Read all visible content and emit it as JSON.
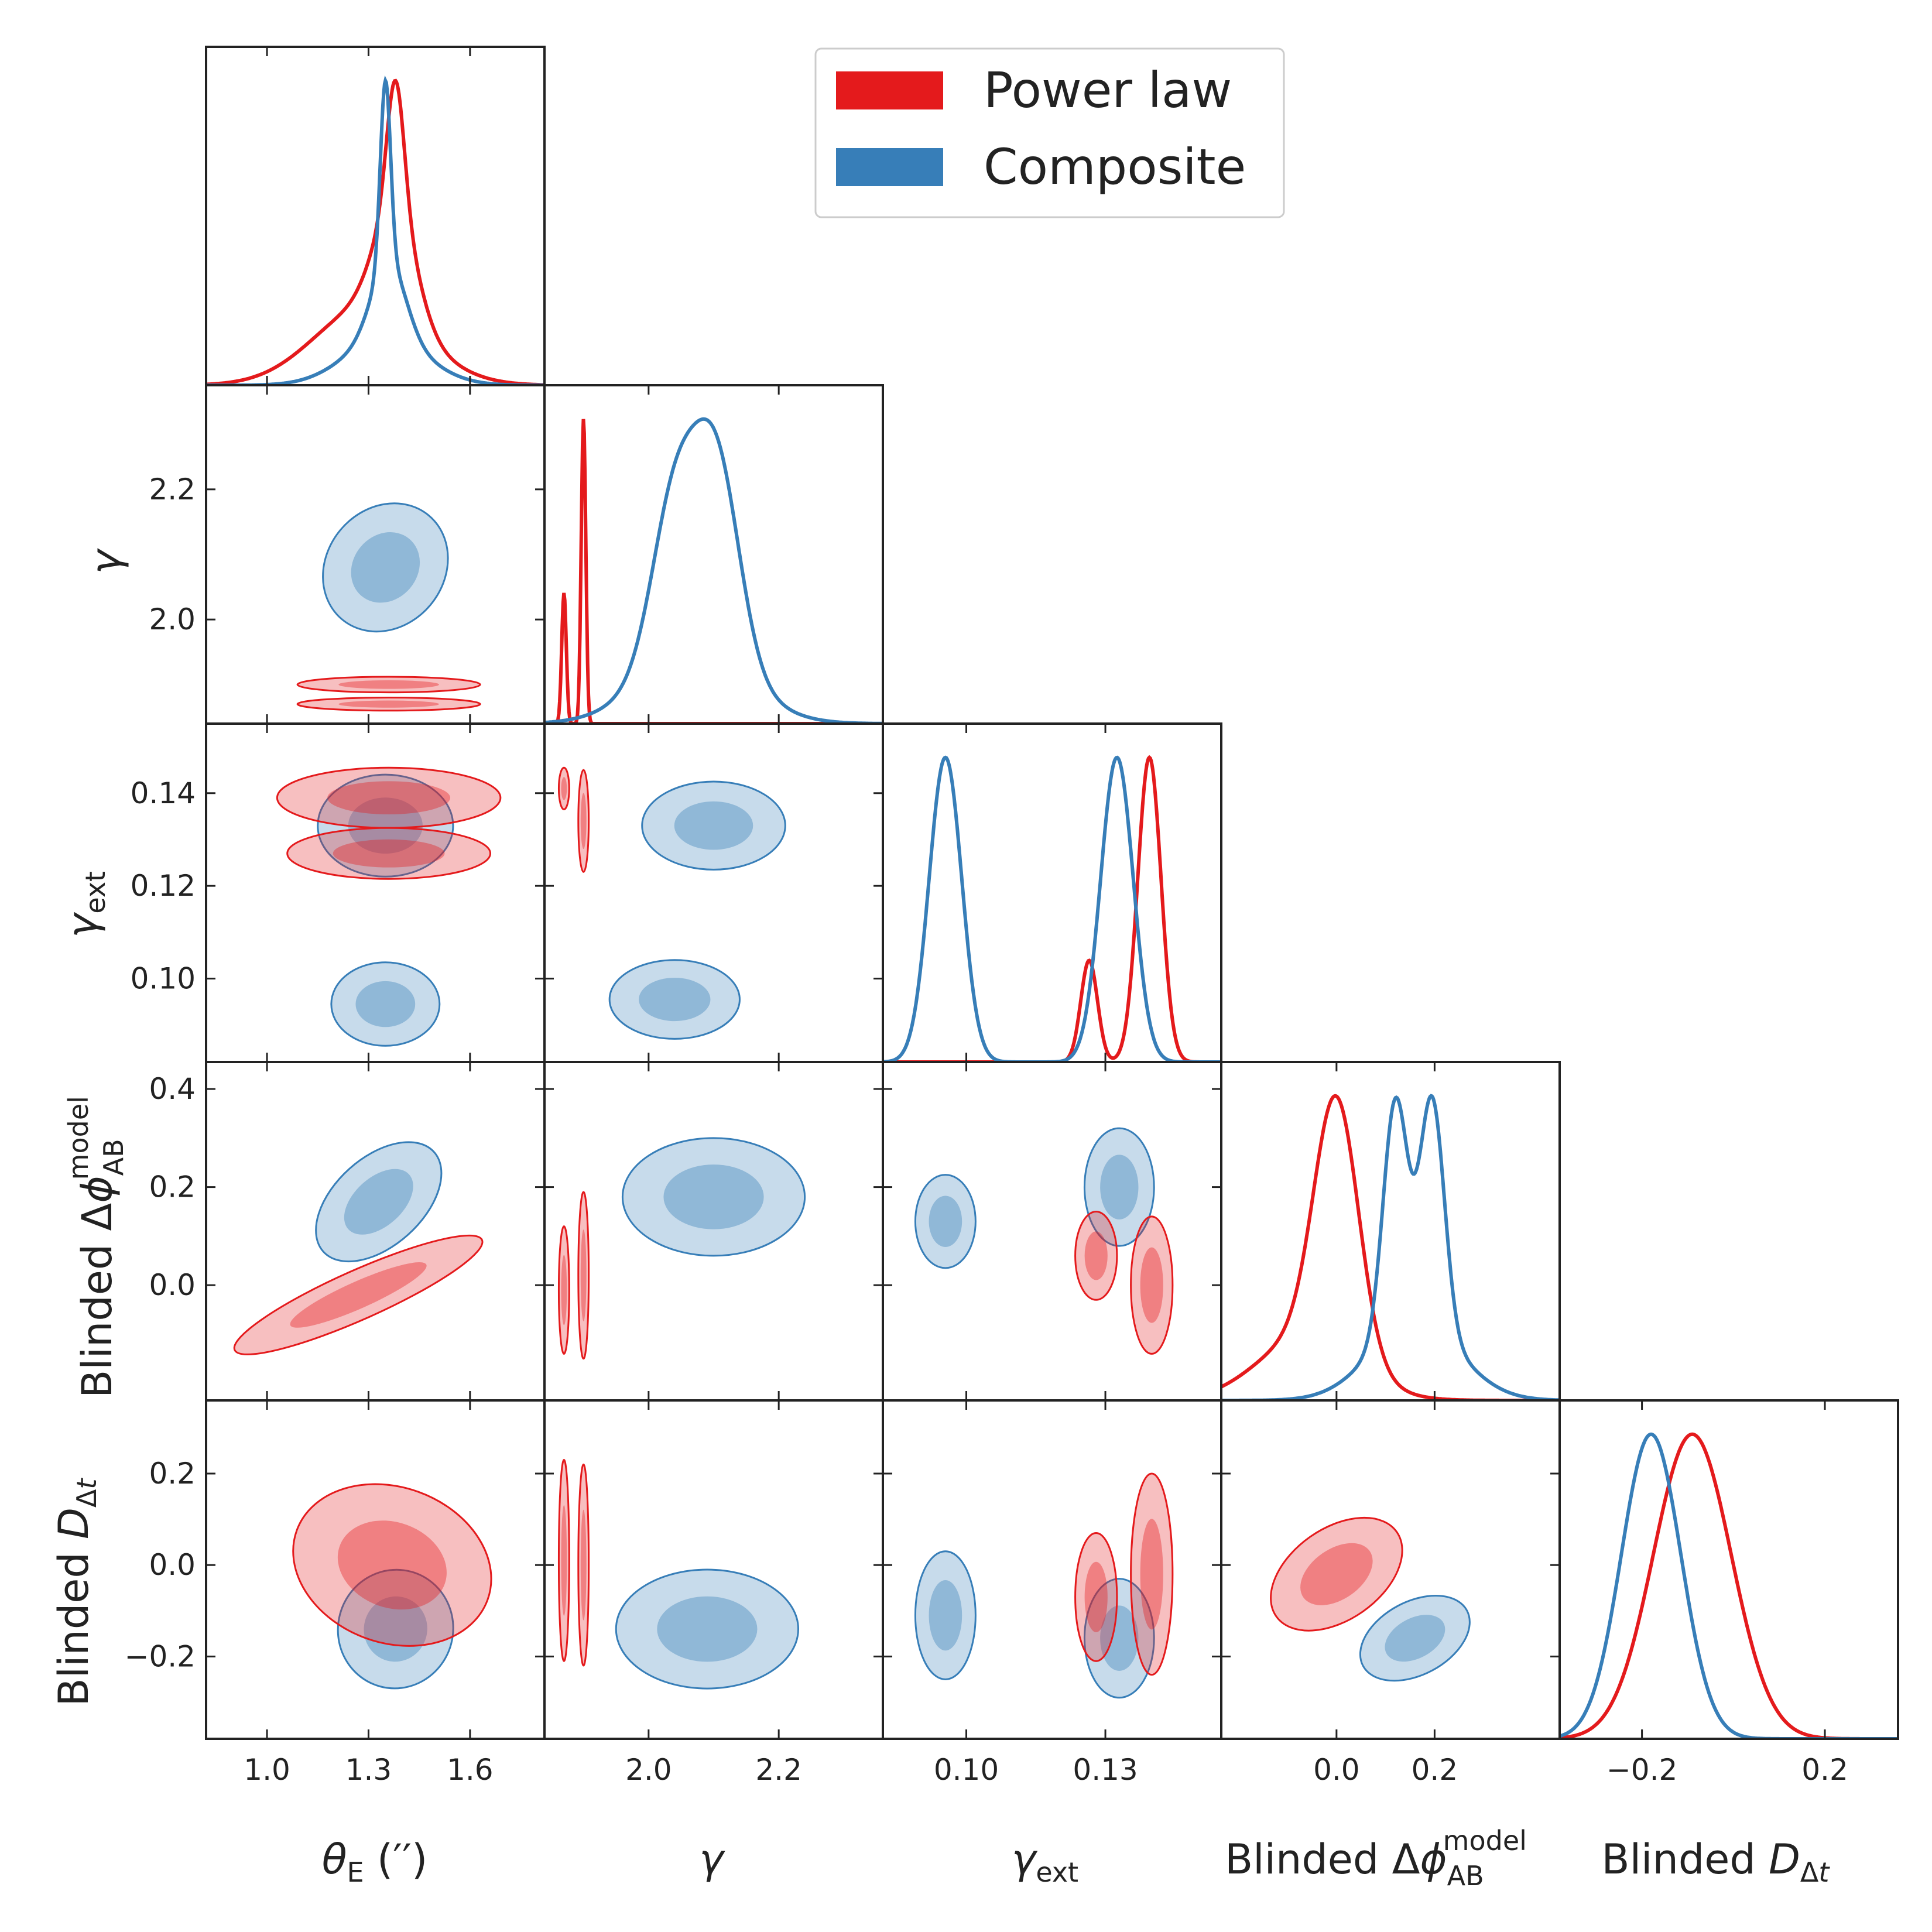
{
  "colors": {
    "power_law": "#e41a1c",
    "composite": "#377eb8"
  },
  "legend": {
    "placement": "top-right",
    "entries": [
      "Power law",
      "Composite"
    ]
  },
  "axes_labels": {
    "theta_E": "θ_E (′′)",
    "gamma": "γ",
    "gamma_ext": "γ_ext",
    "delta_phi": "Blinded Δφ_AB^model",
    "D_dt": "Blinded D_Δt"
  },
  "chart_data": {
    "type": "corner",
    "series": [
      {
        "name": "Power law",
        "color": "#e41a1c"
      },
      {
        "name": "Composite",
        "color": "#377eb8"
      }
    ],
    "parameters": [
      {
        "key": "theta_E",
        "label": "θ_E (′′)",
        "range": [
          0.82,
          1.82
        ],
        "ticks": [
          1.0,
          1.3,
          1.6
        ],
        "tick_labels": [
          "1.0",
          "1.3",
          "1.6"
        ]
      },
      {
        "key": "gamma",
        "label": "γ",
        "range": [
          1.84,
          2.36
        ],
        "ticks": [
          2.0,
          2.2
        ],
        "tick_labels": [
          "2.0",
          "2.2"
        ]
      },
      {
        "key": "gamma_ext",
        "label": "γ_ext",
        "range": [
          0.082,
          0.155
        ],
        "ticks": [
          0.1,
          0.13
        ],
        "tick_labels": [
          "0.10",
          "0.13"
        ],
        "ytick_labels": [
          "0.10",
          "0.12",
          "0.14"
        ],
        "yticks": [
          0.1,
          0.12,
          0.14
        ]
      },
      {
        "key": "delta_phi",
        "label": "Blinded Δφ_AB^model",
        "range": [
          -0.235,
          0.455
        ],
        "ticks": [
          0.0,
          0.2
        ],
        "tick_labels": [
          "0.0",
          "0.2"
        ],
        "yticks": [
          0.0,
          0.2,
          0.4
        ],
        "ytick_labels": [
          "0.0",
          "0.2",
          "0.4"
        ]
      },
      {
        "key": "D_dt",
        "label": "Blinded D_Δt",
        "range": [
          -0.38,
          0.36
        ],
        "ticks": [
          -0.2,
          0.2
        ],
        "tick_labels": [
          "−0.2",
          "0.2"
        ],
        "yticks": [
          -0.2,
          0.0,
          0.2
        ],
        "ytick_labels": [
          "−0.2",
          "0.0",
          "0.2"
        ]
      }
    ],
    "marginals": {
      "theta_E": {
        "Power law": [
          {
            "mix": [
              [
                0.4,
                1.38,
                0.025
              ],
              [
                0.35,
                1.38,
                0.06
              ],
              [
                0.25,
                1.3,
                0.16
              ]
            ]
          }
        ],
        "Composite": [
          {
            "mix": [
              [
                0.6,
                1.35,
                0.015
              ],
              [
                0.25,
                1.36,
                0.05
              ],
              [
                0.15,
                1.35,
                0.12
              ]
            ]
          }
        ]
      },
      "gamma": {
        "Power law": [
          {
            "mix": [
              [
                0.3,
                1.87,
                0.0035
              ],
              [
                0.7,
                1.9,
                0.0035
              ]
            ]
          }
        ],
        "Composite": [
          {
            "mix": [
              [
                0.45,
                2.04,
                0.035
              ],
              [
                0.55,
                2.105,
                0.035
              ],
              [
                0.2,
                2.07,
                0.08
              ]
            ]
          }
        ]
      },
      "gamma_ext": {
        "Power law": [
          {
            "mix": [
              [
                0.25,
                0.1265,
                0.0018
              ],
              [
                0.75,
                0.1395,
                0.0025
              ]
            ]
          }
        ],
        "Composite": [
          {
            "mix": [
              [
                0.5,
                0.0955,
                0.0035
              ],
              [
                0.5,
                0.1325,
                0.0035
              ]
            ]
          }
        ]
      },
      "delta_phi": {
        "Power law": [
          {
            "mix": [
              [
                0.8,
                0.0,
                0.045
              ],
              [
                0.2,
                -0.06,
                0.1
              ]
            ]
          }
        ],
        "Composite": [
          {
            "mix": [
              [
                0.45,
                0.12,
                0.025
              ],
              [
                0.45,
                0.195,
                0.025
              ],
              [
                0.15,
                0.16,
                0.09
              ]
            ]
          }
        ]
      },
      "D_dt": {
        "Power law": [
          {
            "mix": [
              [
                1.0,
                -0.09,
                0.085
              ]
            ]
          }
        ],
        "Composite": [
          {
            "mix": [
              [
                1.0,
                -0.18,
                0.065
              ]
            ]
          }
        ]
      }
    },
    "contours_2d": [
      {
        "x": "theta_E",
        "y": "gamma",
        "Power law": [
          {
            "cx": 1.36,
            "cy": 1.9,
            "sx": 0.27,
            "sy": 0.012,
            "rot": 0
          },
          {
            "cx": 1.36,
            "cy": 1.87,
            "sx": 0.27,
            "sy": 0.01,
            "rot": 0
          }
        ],
        "Composite": [
          {
            "cx": 1.35,
            "cy": 2.08,
            "sx": 0.2,
            "sy": 0.09,
            "rot": -50
          }
        ]
      },
      {
        "x": "theta_E",
        "y": "gamma_ext",
        "Power law": [
          {
            "cx": 1.36,
            "cy": 0.139,
            "sx": 0.33,
            "sy": 0.0065,
            "rot": 0
          },
          {
            "cx": 1.36,
            "cy": 0.127,
            "sx": 0.3,
            "sy": 0.0055,
            "rot": 0
          }
        ],
        "Composite": [
          {
            "cx": 1.35,
            "cy": 0.133,
            "sx": 0.2,
            "sy": 0.011,
            "rot": 0
          },
          {
            "cx": 1.35,
            "cy": 0.0945,
            "sx": 0.16,
            "sy": 0.009,
            "rot": 0
          }
        ]
      },
      {
        "x": "theta_E",
        "y": "delta_phi",
        "Power law": [
          {
            "cx": 1.27,
            "cy": -0.02,
            "sx": 0.4,
            "sy": 0.05,
            "rot": -24
          }
        ],
        "Composite": [
          {
            "cx": 1.33,
            "cy": 0.17,
            "sx": 0.22,
            "sy": 0.09,
            "rot": -42
          }
        ]
      },
      {
        "x": "theta_E",
        "y": "D_dt",
        "Power law": [
          {
            "cx": 1.37,
            "cy": 0.0,
            "sx": 0.3,
            "sy": 0.17,
            "rot": 20
          }
        ],
        "Composite": [
          {
            "cx": 1.38,
            "cy": -0.14,
            "sx": 0.17,
            "sy": 0.13,
            "rot": 15
          }
        ]
      },
      {
        "x": "gamma",
        "y": "gamma_ext",
        "Power law": [
          {
            "cx": 1.87,
            "cy": 0.141,
            "sx": 0.008,
            "sy": 0.0045,
            "rot": 0
          },
          {
            "cx": 1.9,
            "cy": 0.134,
            "sx": 0.008,
            "sy": 0.011,
            "rot": 0
          }
        ],
        "Composite": [
          {
            "cx": 2.1,
            "cy": 0.133,
            "sx": 0.11,
            "sy": 0.0095,
            "rot": 0
          },
          {
            "cx": 2.04,
            "cy": 0.0955,
            "sx": 0.1,
            "sy": 0.0085,
            "rot": 0
          }
        ]
      },
      {
        "x": "gamma",
        "y": "delta_phi",
        "Power law": [
          {
            "cx": 1.87,
            "cy": -0.01,
            "sx": 0.008,
            "sy": 0.13,
            "rot": 0
          },
          {
            "cx": 1.9,
            "cy": 0.02,
            "sx": 0.008,
            "sy": 0.17,
            "rot": 0
          }
        ],
        "Composite": [
          {
            "cx": 2.1,
            "cy": 0.18,
            "sx": 0.14,
            "sy": 0.12,
            "rot": 0
          }
        ]
      },
      {
        "x": "gamma",
        "y": "D_dt",
        "Power law": [
          {
            "cx": 1.87,
            "cy": 0.01,
            "sx": 0.008,
            "sy": 0.22,
            "rot": 0
          },
          {
            "cx": 1.9,
            "cy": 0.0,
            "sx": 0.008,
            "sy": 0.22,
            "rot": 0
          }
        ],
        "Composite": [
          {
            "cx": 2.09,
            "cy": -0.14,
            "sx": 0.14,
            "sy": 0.13,
            "rot": 0
          }
        ]
      },
      {
        "x": "gamma_ext",
        "y": "delta_phi",
        "Power law": [
          {
            "cx": 0.128,
            "cy": 0.06,
            "sx": 0.0045,
            "sy": 0.09,
            "rot": 0
          },
          {
            "cx": 0.14,
            "cy": 0.0,
            "sx": 0.0045,
            "sy": 0.14,
            "rot": 0
          }
        ],
        "Composite": [
          {
            "cx": 0.0955,
            "cy": 0.13,
            "sx": 0.0065,
            "sy": 0.095,
            "rot": 0
          },
          {
            "cx": 0.133,
            "cy": 0.2,
            "sx": 0.0075,
            "sy": 0.12,
            "rot": 0
          }
        ]
      },
      {
        "x": "gamma_ext",
        "y": "D_dt",
        "Power law": [
          {
            "cx": 0.128,
            "cy": -0.07,
            "sx": 0.0045,
            "sy": 0.14,
            "rot": 0
          },
          {
            "cx": 0.14,
            "cy": -0.02,
            "sx": 0.0045,
            "sy": 0.22,
            "rot": 0
          }
        ],
        "Composite": [
          {
            "cx": 0.0955,
            "cy": -0.11,
            "sx": 0.0065,
            "sy": 0.14,
            "rot": 0
          },
          {
            "cx": 0.133,
            "cy": -0.16,
            "sx": 0.0075,
            "sy": 0.13,
            "rot": 0
          }
        ]
      },
      {
        "x": "delta_phi",
        "y": "D_dt",
        "Power law": [
          {
            "cx": 0.0,
            "cy": -0.02,
            "sx": 0.15,
            "sy": 0.1,
            "rot": -35
          }
        ],
        "Composite": [
          {
            "cx": 0.16,
            "cy": -0.16,
            "sx": 0.12,
            "sy": 0.08,
            "rot": -28
          }
        ]
      }
    ]
  }
}
